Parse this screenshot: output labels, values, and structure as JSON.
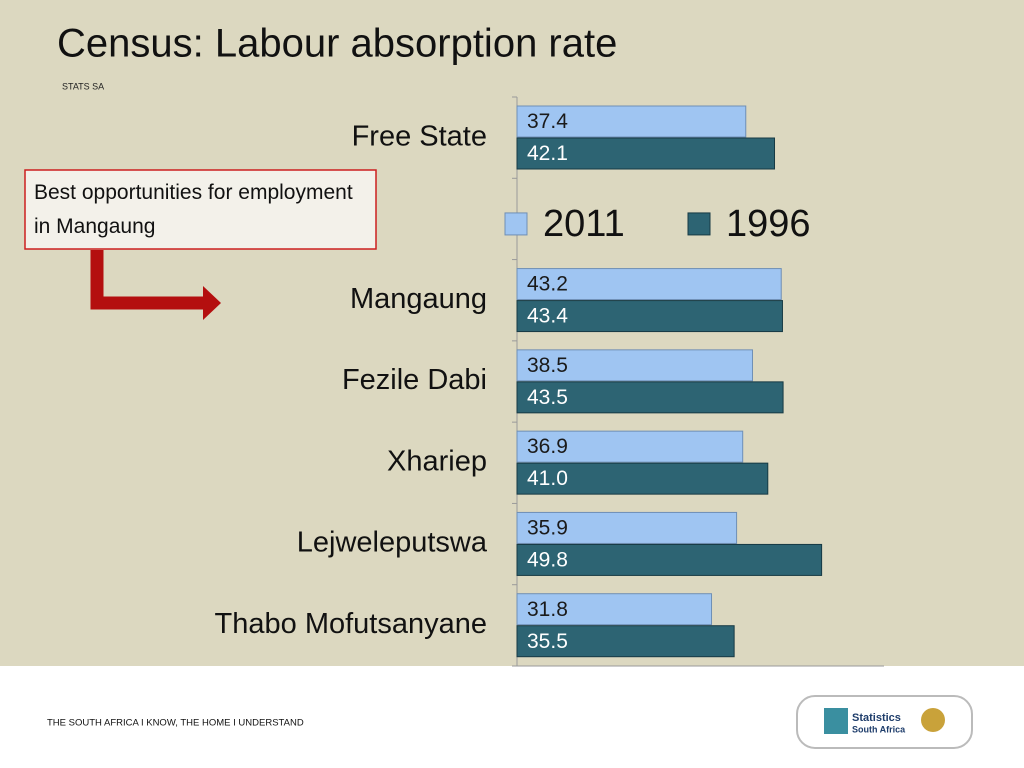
{
  "title": "Census: Labour absorption rate",
  "subtitle": "STATS SA",
  "annotation": "Best opportunities for employment in Mangaung",
  "footer": "THE SOUTH AFRICA I KNOW, THE HOME I UNDERSTAND",
  "logo": {
    "line1": "Statistics",
    "line2": "South Africa"
  },
  "chart_data": {
    "type": "hbar",
    "categories": [
      "Free State",
      null,
      "Mangaung",
      "Fezile Dabi",
      "Xhariep",
      "Lejweleputswa",
      "Thabo Mofutsanyane"
    ],
    "series": [
      {
        "name": "2011",
        "color": "#9fc5f2",
        "values": [
          37.4,
          null,
          43.2,
          38.5,
          36.9,
          35.9,
          31.8
        ],
        "value_labels": [
          "37.4",
          null,
          "43.2",
          "38.5",
          "36.9",
          "35.9",
          "31.8"
        ]
      },
      {
        "name": "1996",
        "color": "#2d6473",
        "values": [
          42.1,
          null,
          43.4,
          43.5,
          41.0,
          49.8,
          35.5
        ],
        "value_labels": [
          "42.1",
          null,
          "43.4",
          "43.5",
          "41.0",
          "49.8",
          "35.5"
        ]
      }
    ],
    "xlim": [
      0,
      60
    ]
  }
}
